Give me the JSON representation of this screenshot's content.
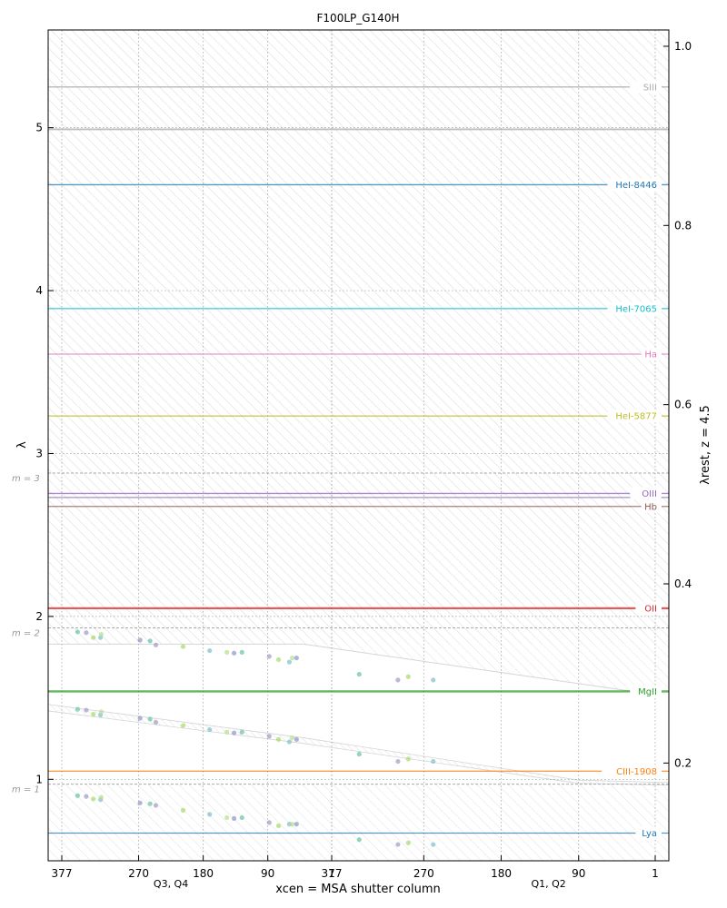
{
  "chart_data": {
    "type": "scatter",
    "title": "F100LP_G140H",
    "xlabel": "xcen = MSA shutter column",
    "ylabel": "λ",
    "y2label": "λrest, z = 4.5",
    "redshift": 4.5,
    "ylim": [
      0.5,
      5.6
    ],
    "y2lim": [
      0.0909,
      1.0182
    ],
    "x_ticks": [
      "377",
      "270",
      "180",
      "90",
      "1",
      "377",
      "270",
      "180",
      "90",
      "1"
    ],
    "quadrant_labels": [
      "Q3, Q4",
      "Q1, Q2"
    ],
    "y_ticks": [
      1,
      2,
      3,
      4,
      5
    ],
    "y2_ticks": [
      0.2,
      0.4,
      0.6,
      0.8,
      1.0
    ],
    "grid": true,
    "orders": [
      {
        "label": "m = 1",
        "wavelength": 0.97
      },
      {
        "label": "m = 2",
        "wavelength": 1.93
      },
      {
        "label": "m = 3",
        "wavelength": 2.88
      }
    ],
    "emission_lines": [
      {
        "name": "SIII",
        "wavelength": 5.25,
        "color": "#aaaaaa",
        "width": 1.5
      },
      {
        "name": "",
        "wavelength": 4.99,
        "color": "#aaaaaa",
        "width": 1.8
      },
      {
        "name": "HeI-8446",
        "wavelength": 4.65,
        "color": "#1f77b4",
        "width": 1.3
      },
      {
        "name": "HeI-7065",
        "wavelength": 3.89,
        "color": "#17becf",
        "width": 1.3
      },
      {
        "name": "Ha",
        "wavelength": 3.61,
        "color": "#e377c2",
        "width": 1.3
      },
      {
        "name": "HeI-5877",
        "wavelength": 3.23,
        "color": "#bcbd22",
        "width": 1.3
      },
      {
        "name": "OIII",
        "wavelength": 2.755,
        "color": "#9467bd",
        "width": 1.3
      },
      {
        "name": "",
        "wavelength": 2.73,
        "color": "#9467bd",
        "width": 1.3
      },
      {
        "name": "Hb",
        "wavelength": 2.675,
        "color": "#8c564b",
        "width": 1.3
      },
      {
        "name": "OII",
        "wavelength": 2.05,
        "color": "#d62728",
        "width": 2.2
      },
      {
        "name": "MgII",
        "wavelength": 1.54,
        "color": "#2ca02c",
        "width": 2.4
      },
      {
        "name": "CIII-1908",
        "wavelength": 1.05,
        "color": "#ff7f0e",
        "width": 1.3
      },
      {
        "name": "Lya",
        "wavelength": 0.67,
        "color": "#1f77b4",
        "width": 1.3
      }
    ],
    "points": [
      {
        "x": 355,
        "y": 1.905,
        "y_m1": 0.9,
        "y_m2": 1.43
      },
      {
        "x": 343,
        "y": 1.9,
        "y_m1": 0.895,
        "y_m2": 1.425
      },
      {
        "x": 333,
        "y": 1.87,
        "y_m1": 0.88,
        "y_m2": 1.4
      },
      {
        "x": 323,
        "y": 1.87,
        "y_m1": 0.875,
        "y_m2": 1.395
      },
      {
        "x": 322,
        "y": 1.89,
        "y_m1": 0.89,
        "y_m2": 1.415
      },
      {
        "x": 268,
        "y": 1.855,
        "y_m1": 0.855,
        "y_m2": 1.375
      },
      {
        "x": 254,
        "y": 1.85,
        "y_m1": 0.85,
        "y_m2": 1.37
      },
      {
        "x": 246,
        "y": 1.825,
        "y_m1": 0.84,
        "y_m2": 1.35
      },
      {
        "x": 208,
        "y": 1.815,
        "y_m1": 0.81,
        "y_m2": 1.33
      },
      {
        "x": 171,
        "y": 1.79,
        "y_m1": 0.785,
        "y_m2": 1.305
      },
      {
        "x": 147,
        "y": 1.78,
        "y_m1": 0.765,
        "y_m2": 1.29
      },
      {
        "x": 137,
        "y": 1.775,
        "y_m1": 0.76,
        "y_m2": 1.285
      },
      {
        "x": 126,
        "y": 1.78,
        "y_m1": 0.765,
        "y_m2": 1.29
      },
      {
        "x": 88,
        "y": 1.755,
        "y_m1": 0.735,
        "y_m2": 1.265
      },
      {
        "x": 75,
        "y": 1.735,
        "y_m1": 0.715,
        "y_m2": 1.245
      },
      {
        "x": 60,
        "y": 1.72,
        "y_m1": 0.725,
        "y_m2": 1.23
      },
      {
        "x": 56,
        "y": 1.745,
        "y_m1": 0.725,
        "y_m2": 1.255
      },
      {
        "x": 50,
        "y": 1.745,
        "y_m1": 0.725,
        "y_m2": 1.245
      }
    ],
    "points_right": [
      {
        "x": 345,
        "y": 1.645,
        "y_m1": 0.63,
        "y_m2": 1.155
      },
      {
        "x": 300,
        "y": 1.61,
        "y_m1": 0.6,
        "y_m2": 1.11
      },
      {
        "x": 288,
        "y": 1.63,
        "y_m1": 0.61,
        "y_m2": 1.125
      },
      {
        "x": 259,
        "y": 1.61,
        "y_m1": 0.6,
        "y_m2": 1.11
      }
    ],
    "point_colors": [
      "#66c2a5",
      "#9e9ac8",
      "#a6d96a",
      "#7fbfc9",
      "#b2df8a",
      "#8c96c6"
    ]
  }
}
